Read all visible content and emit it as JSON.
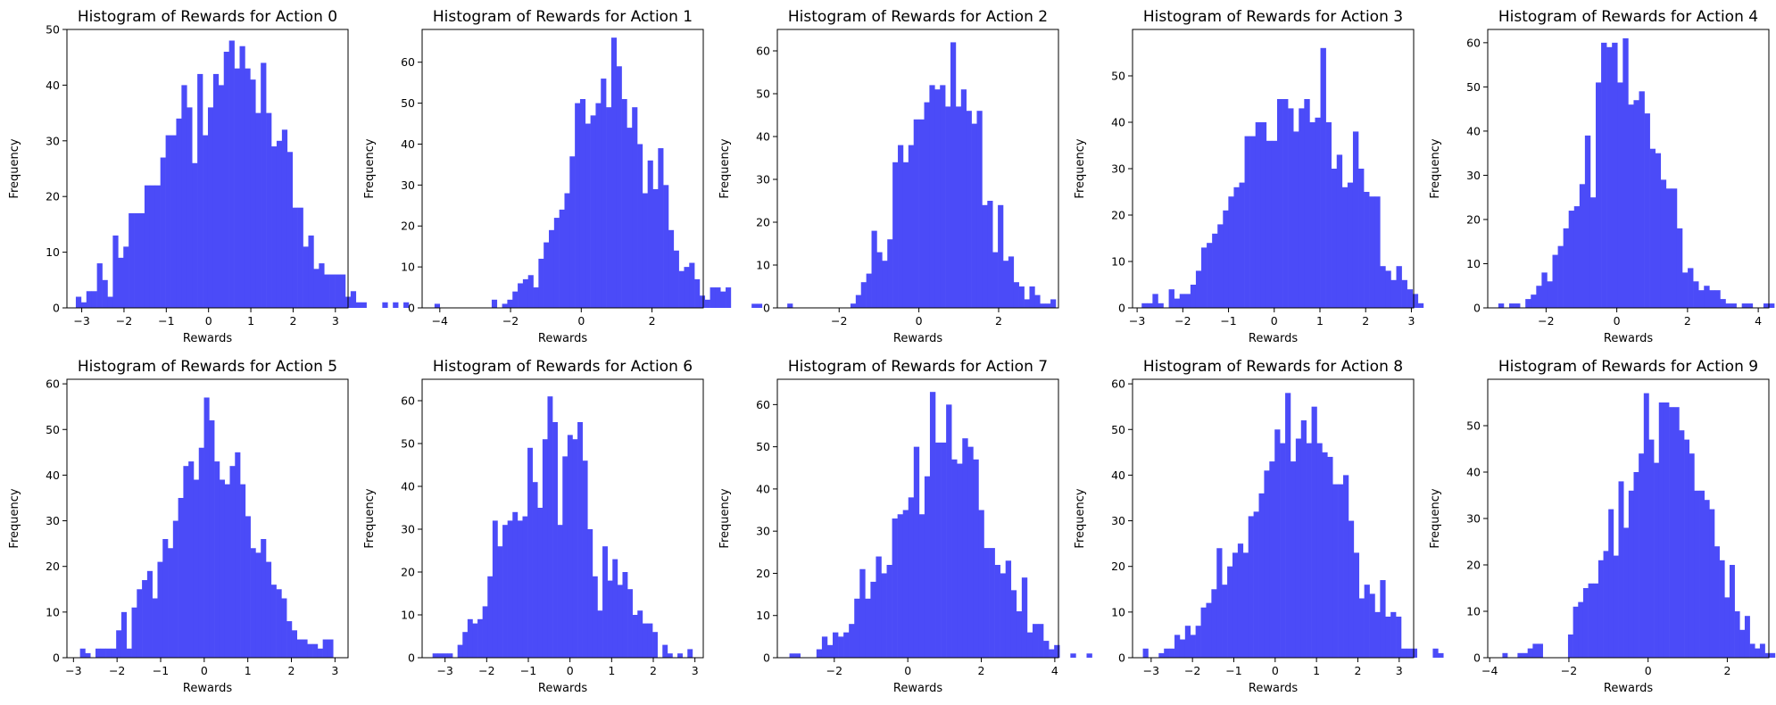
{
  "chart_data": [
    {
      "type": "bar",
      "title": "Histogram of Rewards for Action 0",
      "xlabel": "Rewards",
      "ylabel": "Frequency",
      "bar_color": "#4b4bf8",
      "xlim": [
        -3.35,
        3.3
      ],
      "ylim": [
        0,
        50
      ],
      "x_ticks": [
        -3,
        -2,
        -1,
        0,
        1,
        2,
        3
      ],
      "y_ticks": [
        0,
        10,
        20,
        30,
        40,
        50
      ],
      "bin_start": -3.14,
      "bin_width": 0.125,
      "values": [
        2,
        1,
        3,
        3,
        8,
        5,
        2,
        13,
        9,
        11,
        17,
        17,
        17,
        22,
        22,
        22,
        27,
        31,
        31,
        34,
        40,
        36,
        26,
        42,
        31,
        36,
        42,
        40,
        46,
        48,
        43,
        47,
        43,
        41,
        35,
        44,
        35,
        29,
        30,
        32,
        28,
        18,
        18,
        11,
        13,
        7,
        8,
        6,
        6,
        6,
        6,
        2,
        3,
        1,
        1,
        0,
        0,
        0,
        1,
        0,
        1,
        0,
        1
      ]
    },
    {
      "type": "bar",
      "title": "Histogram of Rewards for Action 1",
      "xlabel": "Rewards",
      "ylabel": "Frequency",
      "bar_color": "#4b4bf8",
      "xlim": [
        -4.5,
        3.45
      ],
      "ylim": [
        0,
        68
      ],
      "x_ticks": [
        -4,
        -2,
        0,
        2
      ],
      "y_ticks": [
        0,
        10,
        20,
        30,
        40,
        50,
        60
      ],
      "bin_start": -4.15,
      "bin_width": 0.147,
      "values": [
        1,
        0,
        0,
        0,
        0,
        0,
        0,
        0,
        0,
        0,
        0,
        2,
        0,
        1,
        2,
        4,
        6,
        7,
        8,
        5,
        12,
        16,
        19,
        22,
        24,
        28,
        37,
        50,
        51,
        45,
        47,
        50,
        56,
        49,
        66,
        59,
        51,
        44,
        49,
        40,
        28,
        36,
        29,
        39,
        30,
        19,
        14,
        9,
        10,
        11,
        7,
        3,
        2,
        5,
        5,
        4,
        5,
        0,
        0,
        0,
        0,
        1,
        1
      ]
    },
    {
      "type": "bar",
      "title": "Histogram of Rewards for Action 2",
      "xlabel": "Rewards",
      "ylabel": "Frequency",
      "bar_color": "#4b4bf8",
      "xlim": [
        -3.55,
        3.5
      ],
      "ylim": [
        0,
        65
      ],
      "x_ticks": [
        -2,
        0,
        2
      ],
      "y_ticks": [
        0,
        10,
        20,
        30,
        40,
        50,
        60
      ],
      "bin_start": -3.3,
      "bin_width": 0.132,
      "values": [
        1,
        0,
        0,
        0,
        0,
        0,
        0,
        0,
        0,
        0,
        0,
        0,
        1,
        3,
        6,
        8,
        18,
        13,
        11,
        16,
        34,
        38,
        34,
        38,
        44,
        44,
        48,
        52,
        51,
        52,
        47,
        62,
        47,
        51,
        46,
        43,
        46,
        24,
        25,
        13,
        24,
        11,
        12,
        6,
        5,
        2,
        5,
        3,
        1,
        1,
        2,
        0
      ]
    },
    {
      "type": "bar",
      "title": "Histogram of Rewards for Action 3",
      "xlabel": "Rewards",
      "ylabel": "Frequency",
      "bar_color": "#4b4bf8",
      "xlim": [
        -3.1,
        3.05
      ],
      "ylim": [
        0,
        60
      ],
      "x_ticks": [
        -3,
        -2,
        -1,
        0,
        1,
        2,
        3
      ],
      "y_ticks": [
        0,
        10,
        20,
        30,
        40,
        50
      ],
      "bin_start": -2.9,
      "bin_width": 0.1185,
      "values": [
        1,
        1,
        3,
        1,
        0,
        4,
        2,
        3,
        3,
        5,
        8,
        13,
        14,
        16,
        18,
        21,
        24,
        26,
        27,
        37,
        37,
        40,
        40,
        36,
        36,
        45,
        45,
        43,
        38,
        43,
        45,
        40,
        41,
        56,
        40,
        30,
        33,
        26,
        27,
        38,
        30,
        25,
        24,
        24,
        9,
        8,
        6,
        9,
        6,
        4,
        3,
        1,
        0
      ]
    },
    {
      "type": "bar",
      "title": "Histogram of Rewards for Action 4",
      "xlabel": "Rewards",
      "ylabel": "Frequency",
      "bar_color": "#4b4bf8",
      "xlim": [
        -3.65,
        4.3
      ],
      "ylim": [
        0,
        63
      ],
      "x_ticks": [
        -2,
        0,
        2,
        4
      ],
      "y_ticks": [
        0,
        10,
        20,
        30,
        40,
        50,
        60
      ],
      "bin_start": -3.35,
      "bin_width": 0.153,
      "values": [
        1,
        0,
        1,
        1,
        0,
        2,
        3,
        5,
        8,
        6,
        12,
        14,
        18,
        22,
        23,
        28,
        39,
        25,
        51,
        60,
        59,
        60,
        51,
        61,
        46,
        47,
        49,
        44,
        36,
        35,
        29,
        27,
        27,
        18,
        8,
        9,
        6,
        4,
        5,
        4,
        4,
        2,
        1,
        1,
        0,
        1,
        1,
        0,
        0,
        1,
        1
      ]
    },
    {
      "type": "bar",
      "title": "Histogram of Rewards for Action 5",
      "xlabel": "Rewards",
      "ylabel": "Frequency",
      "bar_color": "#4b4bf8",
      "xlim": [
        -3.15,
        3.3
      ],
      "ylim": [
        0,
        61
      ],
      "x_ticks": [
        -3,
        -2,
        -1,
        0,
        1,
        2,
        3
      ],
      "y_ticks": [
        0,
        10,
        20,
        30,
        40,
        50,
        60
      ],
      "bin_start": -2.85,
      "bin_width": 0.1185,
      "values": [
        2,
        1,
        0,
        2,
        2,
        2,
        2,
        6,
        10,
        2,
        11,
        15,
        17,
        19,
        13,
        21,
        26,
        24,
        30,
        35,
        42,
        43,
        39,
        46,
        57,
        52,
        43,
        39,
        38,
        42,
        45,
        38,
        31,
        24,
        23,
        26,
        21,
        16,
        15,
        13,
        8,
        6,
        4,
        4,
        3,
        3,
        2,
        4,
        4,
        0
      ]
    },
    {
      "type": "bar",
      "title": "Histogram of Rewards for Action 6",
      "xlabel": "Rewards",
      "ylabel": "Frequency",
      "bar_color": "#4b4bf8",
      "xlim": [
        -3.55,
        3.2
      ],
      "ylim": [
        0,
        65
      ],
      "x_ticks": [
        -3,
        -2,
        -1,
        0,
        1,
        2,
        3
      ],
      "y_ticks": [
        0,
        10,
        20,
        30,
        40,
        50,
        60
      ],
      "bin_start": -3.3,
      "bin_width": 0.12,
      "values": [
        1,
        1,
        1,
        1,
        0,
        3,
        6,
        9,
        8,
        9,
        12,
        19,
        32,
        26,
        31,
        32,
        34,
        32,
        33,
        49,
        41,
        35,
        51,
        61,
        55,
        31,
        47,
        52,
        51,
        55,
        46,
        30,
        19,
        11,
        26,
        18,
        23,
        17,
        20,
        16,
        10,
        11,
        8,
        8,
        6,
        0,
        3,
        1,
        0,
        1,
        0,
        2
      ]
    },
    {
      "type": "bar",
      "title": "Histogram of Rewards for Action 7",
      "xlabel": "Rewards",
      "ylabel": "Frequency",
      "bar_color": "#4b4bf8",
      "xlim": [
        -3.55,
        4.1
      ],
      "ylim": [
        0,
        66
      ],
      "x_ticks": [
        -2,
        0,
        2,
        4
      ],
      "y_ticks": [
        0,
        10,
        20,
        30,
        40,
        50,
        60
      ],
      "bin_start": -3.22,
      "bin_width": 0.147,
      "values": [
        1,
        1,
        0,
        0,
        0,
        2,
        5,
        3,
        6,
        5,
        6,
        8,
        14,
        21,
        14,
        18,
        24,
        20,
        22,
        33,
        34,
        35,
        38,
        50,
        34,
        43,
        63,
        51,
        51,
        60,
        47,
        46,
        52,
        50,
        47,
        35,
        26,
        26,
        22,
        20,
        23,
        16,
        11,
        19,
        6,
        8,
        8,
        4,
        2,
        3,
        0,
        0,
        1,
        0,
        0,
        1
      ]
    },
    {
      "type": "bar",
      "title": "Histogram of Rewards for Action 8",
      "xlabel": "Rewards",
      "ylabel": "Frequency",
      "bar_color": "#4b4bf8",
      "xlim": [
        -3.45,
        3.35
      ],
      "ylim": [
        0,
        61
      ],
      "x_ticks": [
        -3,
        -2,
        -1,
        0,
        1,
        2,
        3
      ],
      "y_ticks": [
        0,
        10,
        20,
        30,
        40,
        50,
        60
      ],
      "bin_start": -3.2,
      "bin_width": 0.1275,
      "values": [
        2,
        0,
        0,
        1,
        2,
        2,
        5,
        4,
        7,
        5,
        7,
        11,
        12,
        15,
        24,
        16,
        20,
        23,
        25,
        23,
        31,
        32,
        36,
        41,
        43,
        50,
        47,
        58,
        43,
        48,
        52,
        47,
        55,
        47,
        45,
        44,
        38,
        38,
        40,
        30,
        23,
        13,
        16,
        14,
        10,
        17,
        9,
        10,
        9,
        2,
        2,
        2,
        0,
        0,
        0,
        2,
        1
      ]
    },
    {
      "type": "bar",
      "title": "Histogram of Rewards for Action 9",
      "xlabel": "Rewards",
      "ylabel": "Frequency",
      "bar_color": "#4b4bf8",
      "xlim": [
        -4.05,
        3.05
      ],
      "ylim": [
        0,
        60
      ],
      "x_ticks": [
        -4,
        -2,
        0,
        2
      ],
      "y_ticks": [
        0,
        10,
        20,
        30,
        40,
        50
      ],
      "bin_start": -3.68,
      "bin_width": 0.1275,
      "values": [
        1,
        0,
        0,
        1,
        1,
        2,
        3,
        3,
        0,
        0,
        0,
        0,
        0,
        5,
        11,
        12,
        15,
        16,
        16,
        21,
        23,
        32,
        22,
        38,
        28,
        36,
        40,
        44,
        57,
        47,
        42,
        55,
        55,
        54,
        54,
        49,
        47,
        44,
        36,
        36,
        34,
        32,
        24,
        21,
        13,
        20,
        10,
        6,
        9,
        3,
        2,
        3,
        1,
        1
      ]
    }
  ]
}
